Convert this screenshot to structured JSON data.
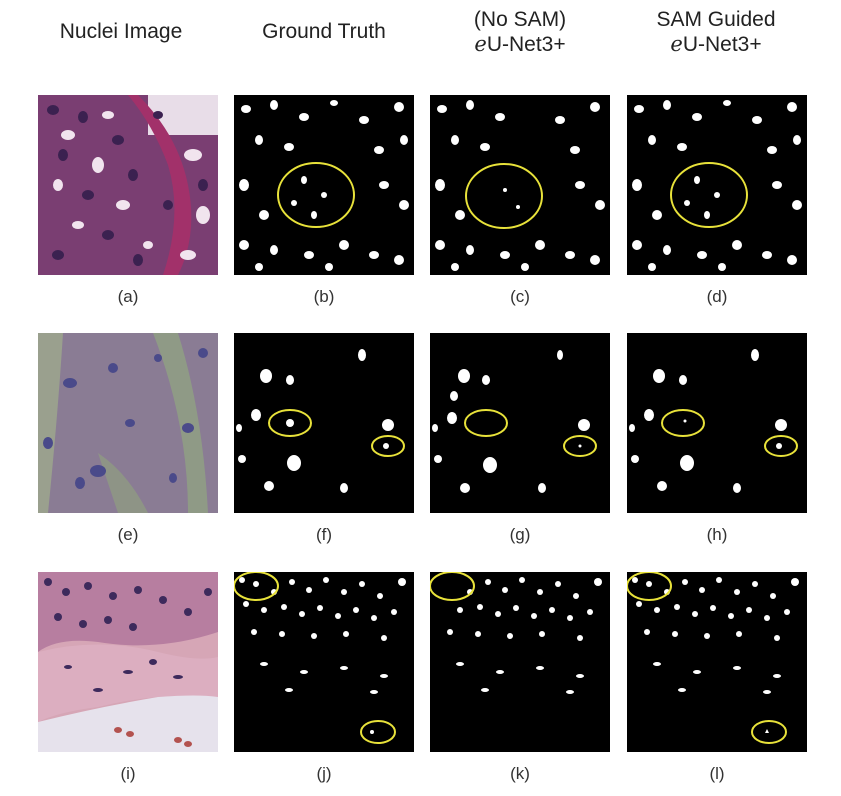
{
  "headers": {
    "col1": {
      "line1": "Nuclei Image"
    },
    "col2": {
      "line1": "Ground Truth"
    },
    "col3": {
      "line1": "(No SAM)",
      "italic": "e",
      "rest": "U-Net3+"
    },
    "col4": {
      "line1": "SAM Guided",
      "italic": "e",
      "rest": "U-Net3+"
    }
  },
  "captions": [
    "(a)",
    "(b)",
    "(c)",
    "(d)",
    "(e)",
    "(f)",
    "(g)",
    "(h)",
    "(i)",
    "(j)",
    "(k)",
    "(l)"
  ],
  "colors": {
    "highlight_ellipse": "#e8e23a",
    "mask_background": "#000000",
    "mask_foreground": "#ffffff",
    "he_stain_dense": "#7a3e72",
    "he_stain_faint": "#8a7c94",
    "he_stain_row3": "#d6a6b6"
  }
}
